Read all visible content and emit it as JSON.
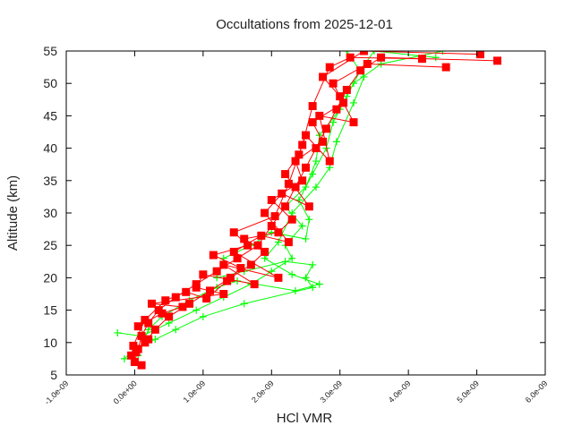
{
  "chart_data": {
    "type": "line",
    "title": "Occultations from 2025-12-01",
    "xlabel": "HCl VMR",
    "ylabel": "Altitude (km)",
    "xlim": [
      -1e-09,
      6e-09
    ],
    "ylim": [
      5,
      55
    ],
    "x_ticks": [
      -1e-09,
      0,
      1e-09,
      2e-09,
      3e-09,
      4e-09,
      5e-09,
      6e-09
    ],
    "x_tick_labels": [
      "-1.0e-09",
      "0.0e+00",
      "1.0e-09",
      "2.0e-09",
      "3.0e-09",
      "4.0e-09",
      "5.0e-09",
      "6.0e-09"
    ],
    "y_ticks": [
      5,
      10,
      15,
      20,
      25,
      30,
      35,
      40,
      45,
      50,
      55
    ],
    "y_tick_labels": [
      "5",
      "10",
      "15",
      "20",
      "25",
      "30",
      "35",
      "40",
      "45",
      "50",
      "55"
    ],
    "grid": false,
    "legend": "none",
    "series": [
      {
        "color": "#ff0000",
        "marker": "filled-square",
        "profiles": [
          [
            [
              0.0,
              7
            ],
            [
              5e-11,
              9
            ],
            [
              1e-10,
              11
            ],
            [
              2e-10,
              13
            ],
            [
              3.5e-10,
              15
            ],
            [
              6e-10,
              17
            ],
            [
              9e-10,
              19
            ],
            [
              1.2e-09,
              21
            ],
            [
              1.5e-09,
              23
            ],
            [
              1.8e-09,
              25
            ],
            [
              2e-09,
              28
            ],
            [
              2.2e-09,
              31
            ],
            [
              2.35e-09,
              34
            ],
            [
              2.5e-09,
              37
            ],
            [
              2.65e-09,
              40
            ],
            [
              2.8e-09,
              43
            ],
            [
              2.95e-09,
              46
            ],
            [
              3.1e-09,
              49
            ],
            [
              3.3e-09,
              52
            ],
            [
              3.6e-09,
              54
            ],
            [
              5.3e-09,
              53.5
            ]
          ],
          [
            [
              1e-10,
              6.5
            ],
            [
              -5e-11,
              8
            ],
            [
              1.5e-10,
              10
            ],
            [
              3e-10,
              12
            ],
            [
              5e-10,
              14
            ],
            [
              8e-10,
              16
            ],
            [
              1.1e-09,
              18
            ],
            [
              1.4e-09,
              20
            ],
            [
              1.7e-09,
              22
            ],
            [
              1.9e-09,
              24
            ],
            [
              1.6e-09,
              26
            ],
            [
              2.1e-09,
              27
            ],
            [
              2.3e-09,
              29
            ],
            [
              2e-09,
              32
            ],
            [
              2.45e-09,
              35
            ],
            [
              2.35e-09,
              38
            ],
            [
              2.75e-09,
              41
            ],
            [
              2.6e-09,
              44
            ],
            [
              3.05e-09,
              47
            ],
            [
              2.9e-09,
              50
            ],
            [
              3.4e-09,
              53
            ],
            [
              4.55e-09,
              52.5
            ]
          ],
          [
            [
              2e-11,
              8.5
            ],
            [
              2e-10,
              10.5
            ],
            [
              5e-11,
              12.5
            ],
            [
              4e-10,
              14.5
            ],
            [
              7e-10,
              15.5
            ],
            [
              2.5e-10,
              16
            ],
            [
              1.3e-09,
              17.5
            ],
            [
              9e-10,
              18.5
            ],
            [
              1e-09,
              20.5
            ],
            [
              1.75e-09,
              19
            ],
            [
              1.3e-09,
              22
            ],
            [
              2.1e-09,
              20
            ],
            [
              1.45e-09,
              24
            ],
            [
              1.85e-09,
              26.5
            ],
            [
              2.25e-09,
              25.5
            ],
            [
              1.9e-09,
              30
            ],
            [
              2.15e-09,
              33
            ],
            [
              2.55e-09,
              31
            ],
            [
              2.2e-09,
              36
            ],
            [
              2.4e-09,
              39
            ],
            [
              2.5e-09,
              42
            ],
            [
              2.85e-09,
              38
            ],
            [
              2.7e-09,
              45
            ],
            [
              3.2e-09,
              44
            ],
            [
              3e-09,
              48
            ],
            [
              2.75e-09,
              51
            ],
            [
              3.35e-09,
              55
            ],
            [
              5.05e-09,
              54.5
            ]
          ],
          [
            [
              -2e-11,
              9.5
            ],
            [
              1.5e-10,
              13.5
            ],
            [
              4.5e-10,
              16.5
            ],
            [
              7.5e-10,
              17.8
            ],
            [
              1.05e-09,
              16.8
            ],
            [
              1.35e-09,
              19.5
            ],
            [
              1.55e-09,
              21.5
            ],
            [
              1.15e-09,
              23.5
            ],
            [
              1.65e-09,
              25
            ],
            [
              1.45e-09,
              27
            ],
            [
              2.05e-09,
              29.5
            ],
            [
              2.25e-09,
              34.5
            ],
            [
              2.45e-09,
              40.5
            ],
            [
              2.6e-09,
              46.5
            ],
            [
              2.85e-09,
              52.5
            ],
            [
              3.15e-09,
              54
            ],
            [
              4.2e-09,
              53.8
            ]
          ]
        ]
      },
      {
        "color": "#00ff00",
        "marker": "plus",
        "profiles": [
          [
            [
              -1.5e-10,
              7.5
            ],
            [
              0.0,
              9
            ],
            [
              3e-10,
              10.5
            ],
            [
              6e-10,
              12
            ],
            [
              1e-09,
              14
            ],
            [
              1.6e-09,
              16
            ],
            [
              2.6e-09,
              18.5
            ],
            [
              2.5e-09,
              20
            ],
            [
              2.6e-09,
              22
            ],
            [
              2.2e-09,
              22.5
            ],
            [
              1.6e-09,
              21
            ],
            [
              1.2e-09,
              20
            ],
            [
              1.3e-09,
              23
            ],
            [
              1.7e-09,
              25
            ],
            [
              2e-09,
              27
            ],
            [
              2.5e-09,
              26
            ],
            [
              2.55e-09,
              29
            ],
            [
              2.4e-09,
              32
            ],
            [
              2.6e-09,
              36
            ],
            [
              2.8e-09,
              40
            ],
            [
              2.9e-09,
              44
            ],
            [
              3.1e-09,
              48
            ],
            [
              3.3e-09,
              52
            ],
            [
              3.5e-09,
              55
            ],
            [
              4.4e-09,
              54
            ]
          ],
          [
            [
              -2.5e-10,
              11.5
            ],
            [
              1e-10,
              11
            ],
            [
              5e-10,
              13
            ],
            [
              9e-10,
              15
            ],
            [
              1.3e-09,
              17
            ],
            [
              1.7e-09,
              19
            ],
            [
              2e-09,
              21
            ],
            [
              2.3e-09,
              23
            ],
            [
              2.2e-09,
              25
            ],
            [
              2.45e-09,
              28
            ],
            [
              2.2e-09,
              31
            ],
            [
              2.5e-09,
              34
            ],
            [
              2.65e-09,
              38
            ],
            [
              2.7e-09,
              42
            ],
            [
              3e-09,
              46
            ],
            [
              3.2e-09,
              50
            ],
            [
              3.6e-09,
              53
            ],
            [
              4.5e-09,
              55
            ]
          ],
          [
            [
              5e-11,
              8
            ],
            [
              2e-10,
              12
            ],
            [
              4e-10,
              14
            ],
            [
              8e-10,
              16.5
            ],
            [
              1.2e-09,
              18.5
            ],
            [
              1.5e-09,
              19.5
            ],
            [
              2.35e-09,
              18
            ],
            [
              2.7e-09,
              19
            ],
            [
              2.3e-09,
              20.5
            ],
            [
              1.9e-09,
              23
            ],
            [
              2.1e-09,
              25.5
            ],
            [
              2.3e-09,
              30
            ],
            [
              2.65e-09,
              34
            ],
            [
              2.85e-09,
              37
            ],
            [
              2.95e-09,
              41
            ],
            [
              3.2e-09,
              47
            ],
            [
              3.35e-09,
              51
            ],
            [
              3.1e-09,
              55
            ]
          ]
        ]
      }
    ]
  }
}
